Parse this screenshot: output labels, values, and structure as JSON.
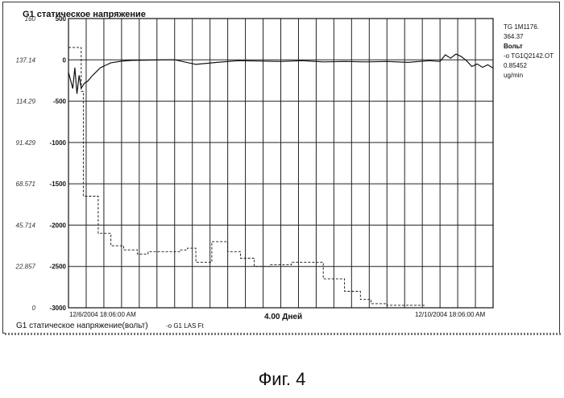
{
  "chart_data": {
    "type": "line",
    "title": "G1 статическое напряжение",
    "subtitle": "4.00 Дней",
    "xlabel": "G1 статическое напряжение(вольт)",
    "legend_secondary": "-o G1 LAS Ft",
    "x_start_label": "12/6/2004 18:06:00 AM",
    "x_end_label": "12/10/2004 18:06:00 AM",
    "x_range_days": [
      0,
      4
    ],
    "ylim_right": [
      -3000,
      500
    ],
    "ylim_left": [
      0,
      160
    ],
    "y_ticks_right": [
      "500",
      "0",
      "-500",
      "-1000",
      "-1500",
      "-2000",
      "-2500",
      "-3000"
    ],
    "y_ticks_left": [
      "160",
      "137.14",
      "114.29",
      "91.429",
      "68.571",
      "45.714",
      "22.857",
      "0"
    ],
    "grid": true,
    "side_labels": [
      "TG 1M1176.",
      "364.37",
      "Вольт",
      "-o TG1Q2142.OT",
      "0.85452",
      "ug/min"
    ],
    "series": [
      {
        "name": "G1 статическое напряжение(вольт)",
        "axis": "right",
        "style": "solid",
        "x": [
          0.0,
          0.04,
          0.06,
          0.08,
          0.1,
          0.12,
          0.15,
          0.18,
          0.22,
          0.26,
          0.3,
          0.35,
          0.4,
          0.5,
          0.6,
          0.8,
          1.0,
          1.2,
          1.4,
          1.6,
          1.8,
          2.0,
          2.2,
          2.4,
          2.6,
          2.8,
          3.0,
          3.2,
          3.4,
          3.5,
          3.55,
          3.6,
          3.65,
          3.7,
          3.75,
          3.8,
          3.85,
          3.9,
          3.95,
          4.0
        ],
        "values": [
          -150,
          -350,
          -100,
          -420,
          -200,
          -360,
          -300,
          -280,
          -220,
          -170,
          -120,
          -90,
          -60,
          -40,
          -30,
          -25,
          -20,
          -55,
          -30,
          -10,
          -15,
          -20,
          -10,
          -25,
          -20,
          -25,
          -20,
          -30,
          -10,
          -20,
          60,
          20,
          70,
          40,
          -10,
          -80,
          -50,
          -90,
          -60,
          -100
        ]
      },
      {
        "name": "G1 LAS Ft",
        "axis": "right",
        "style": "dashed",
        "x": [
          0.0,
          0.12,
          0.12,
          0.14,
          0.14,
          0.28,
          0.28,
          0.4,
          0.4,
          0.52,
          0.52,
          0.65,
          0.65,
          0.75,
          0.75,
          1.05,
          1.05,
          1.12,
          1.12,
          1.2,
          1.2,
          1.35,
          1.35,
          1.5,
          1.5,
          1.62,
          1.62,
          1.75,
          1.75,
          1.9,
          1.9,
          2.1,
          2.1,
          2.4,
          2.4,
          2.6,
          2.6,
          2.75,
          2.75,
          2.85,
          2.85,
          3.0,
          3.0,
          3.35,
          3.35,
          4.0
        ],
        "values": [
          150,
          150,
          -380,
          -380,
          -1650,
          -1650,
          -2100,
          -2100,
          -2250,
          -2250,
          -2300,
          -2300,
          -2350,
          -2350,
          -2320,
          -2320,
          -2300,
          -2300,
          -2280,
          -2280,
          -2450,
          -2450,
          -2200,
          -2200,
          -2320,
          -2320,
          -2400,
          -2400,
          -2500,
          -2500,
          -2480,
          -2480,
          -2450,
          -2450,
          -2650,
          -2650,
          -2800,
          -2800,
          -2900,
          -2900,
          -2950,
          -2950,
          -2970,
          -2970,
          -3000,
          -3000
        ]
      }
    ]
  },
  "caption": "Фиг. 4"
}
